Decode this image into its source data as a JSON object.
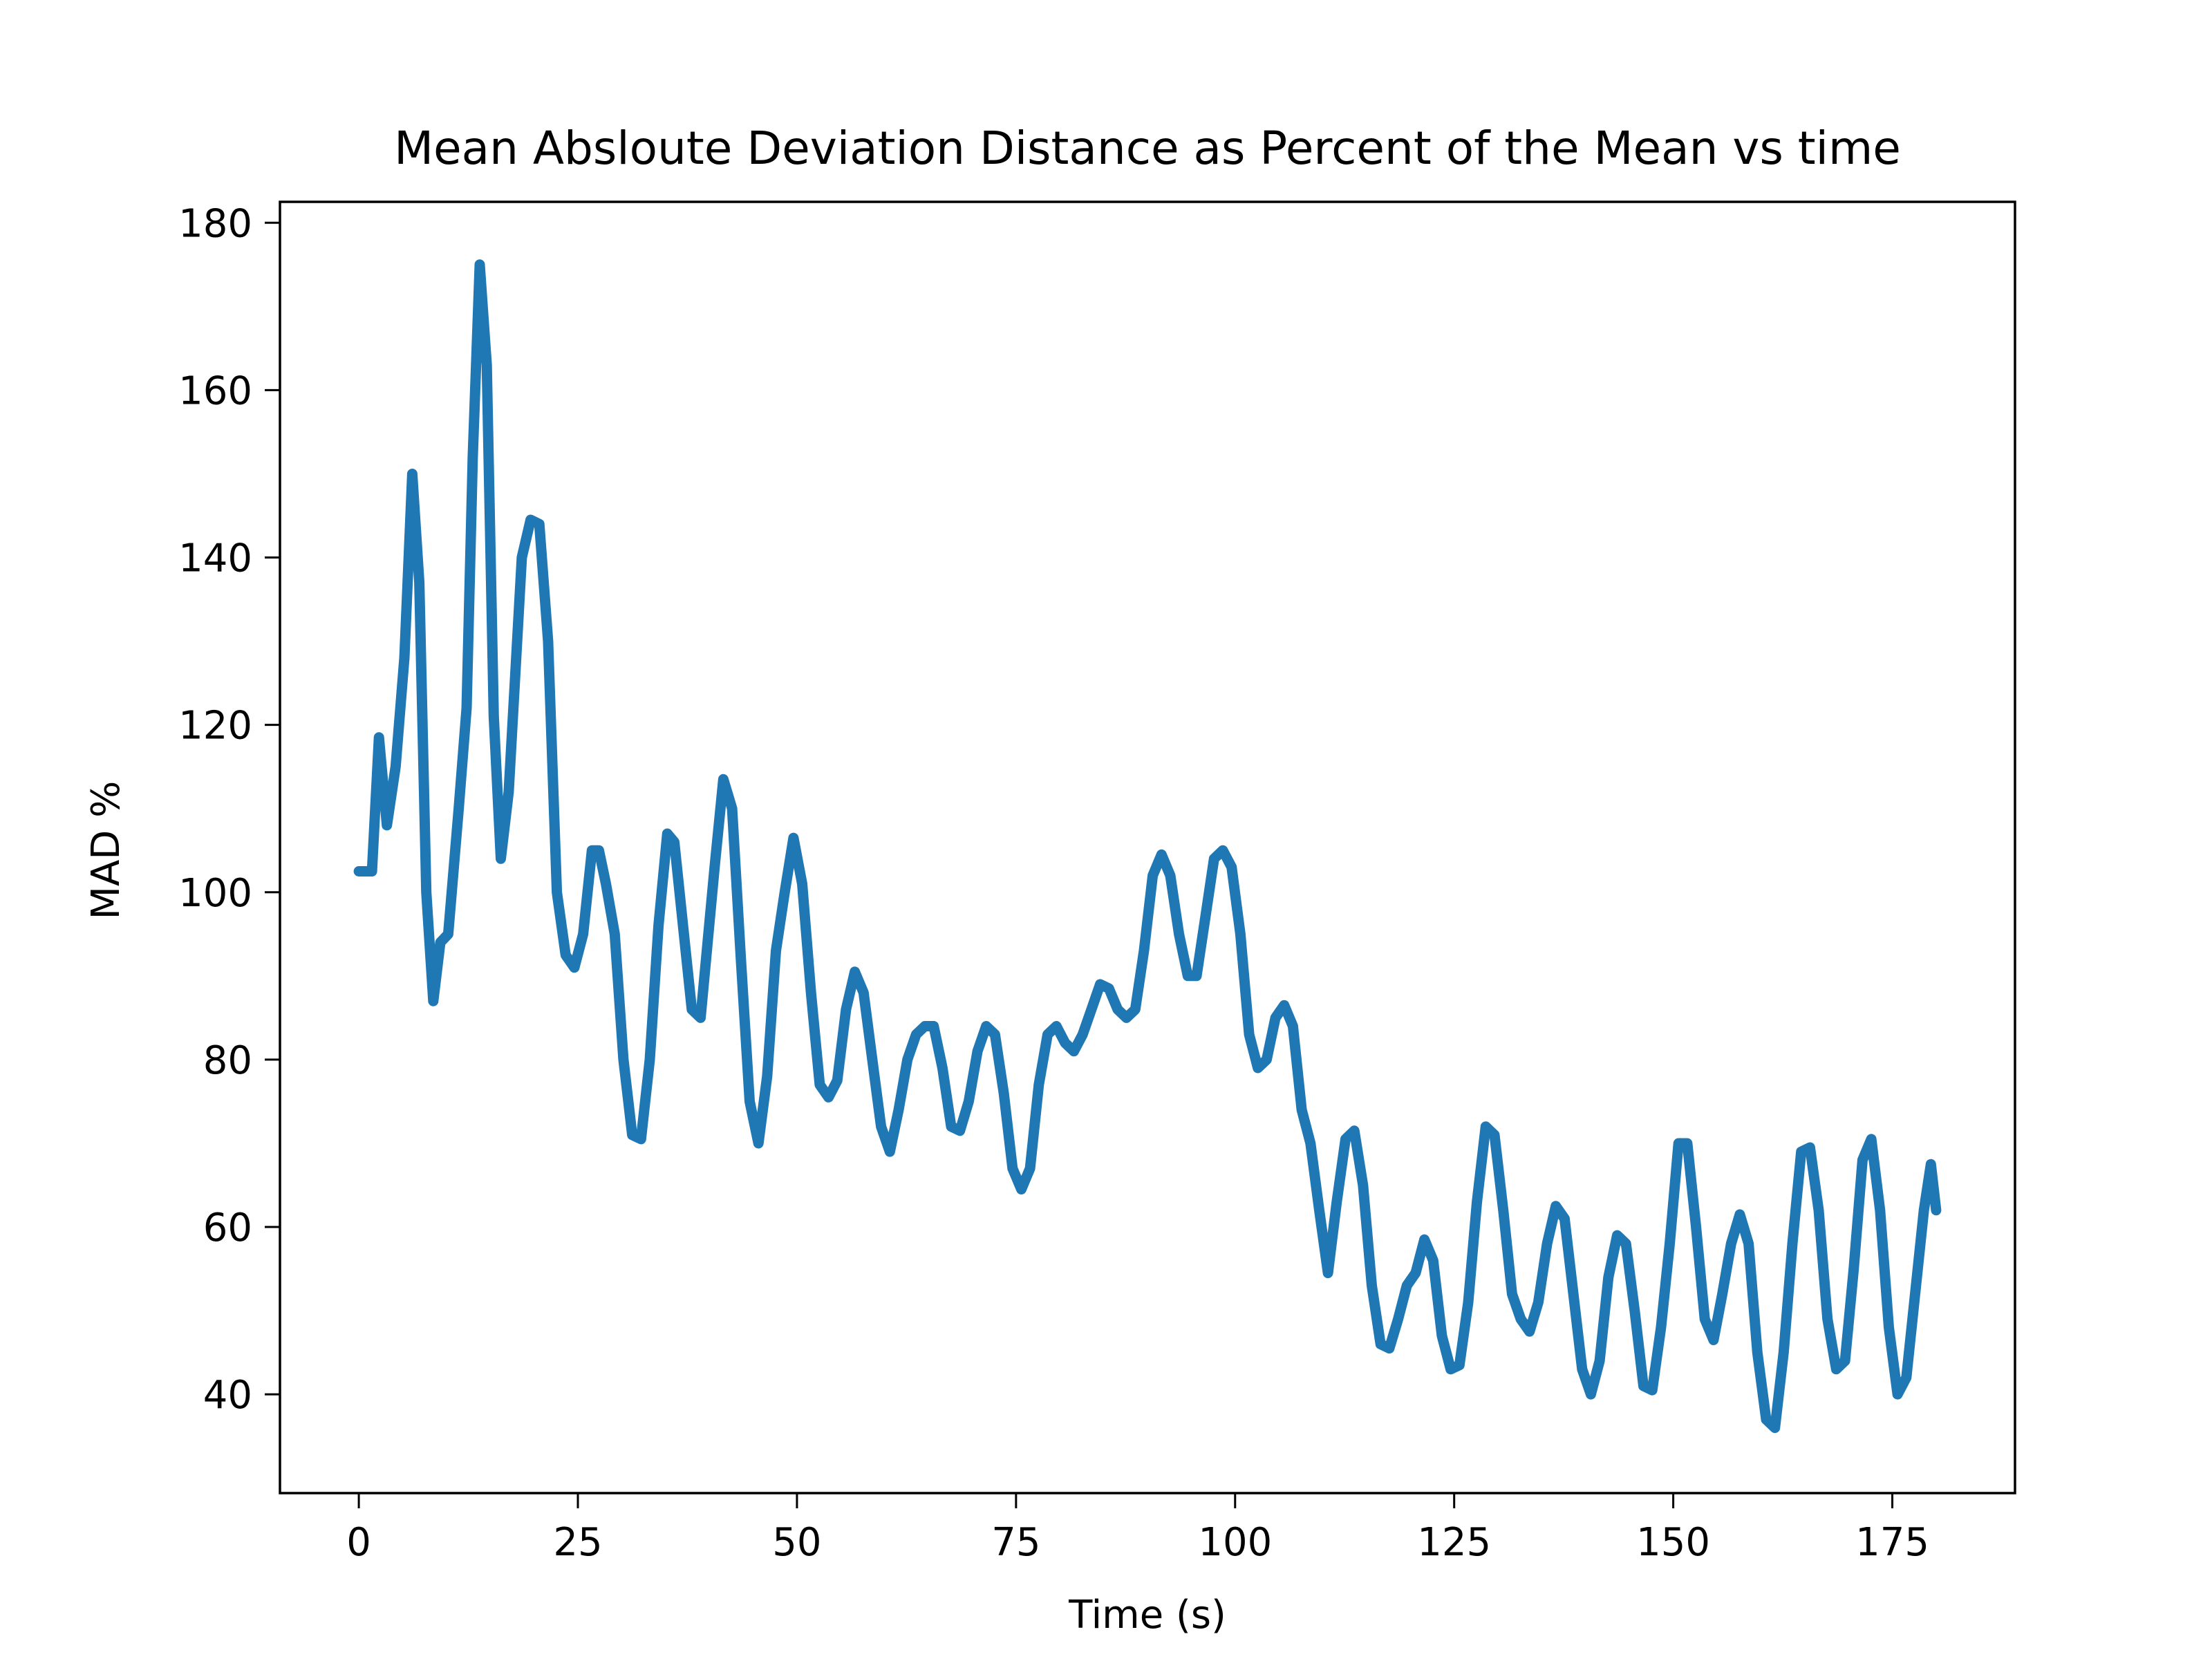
{
  "chart_data": {
    "type": "line",
    "title": "Mean Absloute Deviation Distance as Percent of the Mean vs time",
    "xlabel": "Time (s)",
    "ylabel": "MAD %",
    "xlim": [
      -9,
      189
    ],
    "ylim": [
      28.2,
      182.5
    ],
    "xticks": [
      0,
      25,
      50,
      75,
      100,
      125,
      150,
      175
    ],
    "yticks": [
      40,
      60,
      80,
      100,
      120,
      140,
      160,
      180
    ],
    "grid": false,
    "legend": "none",
    "series": [
      {
        "color": "#1f77b4",
        "points": [
          [
            0,
            102.5
          ],
          [
            1.5,
            102.5
          ],
          [
            2.3,
            118.5
          ],
          [
            3.2,
            108
          ],
          [
            4.2,
            115
          ],
          [
            5.2,
            128
          ],
          [
            6.1,
            150
          ],
          [
            6.9,
            137
          ],
          [
            7.7,
            100
          ],
          [
            8.5,
            87
          ],
          [
            9.3,
            94
          ],
          [
            10.2,
            95
          ],
          [
            11.4,
            110
          ],
          [
            12.3,
            122
          ],
          [
            13,
            152
          ],
          [
            13.8,
            175
          ],
          [
            14.6,
            163
          ],
          [
            15.4,
            121
          ],
          [
            16.2,
            104
          ],
          [
            17.1,
            112
          ],
          [
            18.6,
            140
          ],
          [
            19.6,
            144.5
          ],
          [
            20.6,
            144
          ],
          [
            21.6,
            130
          ],
          [
            22.6,
            100
          ],
          [
            23.6,
            92.5
          ],
          [
            24.6,
            91
          ],
          [
            25.6,
            95
          ],
          [
            26.6,
            105
          ],
          [
            27.4,
            105
          ],
          [
            28.2,
            101
          ],
          [
            29.2,
            95
          ],
          [
            30.2,
            80
          ],
          [
            31.2,
            71
          ],
          [
            32.2,
            70.5
          ],
          [
            33.2,
            80
          ],
          [
            34.2,
            96
          ],
          [
            35.2,
            107
          ],
          [
            36,
            106
          ],
          [
            37,
            96
          ],
          [
            38,
            86
          ],
          [
            39,
            85
          ],
          [
            40.6,
            103
          ],
          [
            41.6,
            113.5
          ],
          [
            42.6,
            110
          ],
          [
            43.6,
            92
          ],
          [
            44.6,
            75
          ],
          [
            45.6,
            70
          ],
          [
            46.6,
            78
          ],
          [
            47.6,
            93
          ],
          [
            48.6,
            100
          ],
          [
            49.6,
            106.5
          ],
          [
            50.6,
            101
          ],
          [
            51.6,
            88
          ],
          [
            52.6,
            77
          ],
          [
            53.6,
            75.5
          ],
          [
            54.6,
            77.5
          ],
          [
            55.6,
            86
          ],
          [
            56.6,
            90.5
          ],
          [
            57.6,
            88
          ],
          [
            58.6,
            80
          ],
          [
            59.6,
            72
          ],
          [
            60.6,
            69
          ],
          [
            61.6,
            74
          ],
          [
            62.6,
            80
          ],
          [
            63.6,
            83
          ],
          [
            64.6,
            84
          ],
          [
            65.6,
            84
          ],
          [
            66.6,
            79
          ],
          [
            67.6,
            72
          ],
          [
            68.6,
            71.5
          ],
          [
            69.6,
            75
          ],
          [
            70.6,
            81
          ],
          [
            71.6,
            84
          ],
          [
            72.6,
            83
          ],
          [
            73.6,
            76
          ],
          [
            74.6,
            67
          ],
          [
            75.6,
            64.5
          ],
          [
            76.6,
            67
          ],
          [
            77.6,
            77
          ],
          [
            78.6,
            83
          ],
          [
            79.6,
            84
          ],
          [
            80.6,
            82
          ],
          [
            81.6,
            81
          ],
          [
            82.6,
            83
          ],
          [
            83.6,
            86
          ],
          [
            84.6,
            89
          ],
          [
            85.6,
            88.5
          ],
          [
            86.6,
            86
          ],
          [
            87.6,
            85
          ],
          [
            88.6,
            86
          ],
          [
            89.6,
            93
          ],
          [
            90.6,
            102
          ],
          [
            91.6,
            104.5
          ],
          [
            92.6,
            102
          ],
          [
            93.6,
            95
          ],
          [
            94.6,
            90
          ],
          [
            95.6,
            90
          ],
          [
            96.6,
            97
          ],
          [
            97.6,
            104
          ],
          [
            98.6,
            105
          ],
          [
            99.6,
            103
          ],
          [
            100.6,
            95
          ],
          [
            101.6,
            83
          ],
          [
            102.6,
            79
          ],
          [
            103.6,
            80
          ],
          [
            104.6,
            85
          ],
          [
            105.6,
            86.5
          ],
          [
            106.6,
            84
          ],
          [
            107.6,
            74
          ],
          [
            108.6,
            70
          ],
          [
            109.6,
            62
          ],
          [
            110.6,
            54.5
          ],
          [
            111.6,
            63
          ],
          [
            112.6,
            70.5
          ],
          [
            113.6,
            71.5
          ],
          [
            114.6,
            65
          ],
          [
            115.6,
            53
          ],
          [
            116.6,
            46
          ],
          [
            117.6,
            45.5
          ],
          [
            118.6,
            49
          ],
          [
            119.6,
            53
          ],
          [
            120.6,
            54.5
          ],
          [
            121.6,
            58.5
          ],
          [
            122.6,
            56
          ],
          [
            123.6,
            47
          ],
          [
            124.6,
            43
          ],
          [
            125.6,
            43.5
          ],
          [
            126.6,
            51
          ],
          [
            127.6,
            63
          ],
          [
            128.6,
            72
          ],
          [
            129.6,
            71
          ],
          [
            130.6,
            62
          ],
          [
            131.6,
            52
          ],
          [
            132.6,
            49
          ],
          [
            133.6,
            47.5
          ],
          [
            134.6,
            51
          ],
          [
            135.6,
            58
          ],
          [
            136.6,
            62.5
          ],
          [
            137.6,
            61
          ],
          [
            138.6,
            52
          ],
          [
            139.6,
            43
          ],
          [
            140.6,
            40
          ],
          [
            141.6,
            44
          ],
          [
            142.6,
            54
          ],
          [
            143.6,
            59
          ],
          [
            144.6,
            58
          ],
          [
            145.6,
            50
          ],
          [
            146.6,
            41
          ],
          [
            147.6,
            40.5
          ],
          [
            148.6,
            48
          ],
          [
            149.6,
            58
          ],
          [
            150.6,
            70
          ],
          [
            151.6,
            70
          ],
          [
            152.6,
            60
          ],
          [
            153.6,
            49
          ],
          [
            154.6,
            46.5
          ],
          [
            155.6,
            52
          ],
          [
            156.6,
            58
          ],
          [
            157.6,
            61.5
          ],
          [
            158.6,
            58
          ],
          [
            159.6,
            45
          ],
          [
            160.6,
            37
          ],
          [
            161.6,
            36
          ],
          [
            162.6,
            45
          ],
          [
            163.6,
            58
          ],
          [
            164.6,
            69
          ],
          [
            165.6,
            69.5
          ],
          [
            166.6,
            62
          ],
          [
            167.6,
            49
          ],
          [
            168.6,
            43
          ],
          [
            169.6,
            44
          ],
          [
            170.6,
            55
          ],
          [
            171.6,
            68
          ],
          [
            172.6,
            70.5
          ],
          [
            173.6,
            62
          ],
          [
            174.6,
            48
          ],
          [
            175.6,
            40
          ],
          [
            176.6,
            42
          ],
          [
            177.6,
            52
          ],
          [
            178.6,
            62
          ],
          [
            179.4,
            67.5
          ],
          [
            180,
            62
          ]
        ]
      }
    ]
  }
}
